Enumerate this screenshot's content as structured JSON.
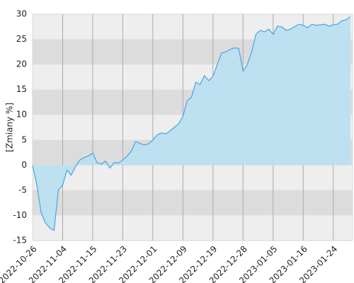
{
  "chart_data": {
    "type": "area",
    "y_label": "[Zmiany %]",
    "categories": [
      "2022-10-26",
      null,
      null,
      null,
      null,
      null,
      null,
      "2022-11-04",
      null,
      null,
      null,
      null,
      null,
      null,
      "2022-11-15",
      null,
      null,
      null,
      null,
      null,
      null,
      "2022-11-23",
      null,
      null,
      null,
      null,
      null,
      null,
      "2022-12-01",
      null,
      null,
      null,
      null,
      null,
      null,
      "2022-12-09",
      null,
      null,
      null,
      null,
      null,
      null,
      "2022-12-19",
      null,
      null,
      null,
      null,
      null,
      null,
      "2022-12-28",
      null,
      null,
      null,
      null,
      null,
      null,
      "2023-01-05",
      null,
      null,
      null,
      null,
      null,
      null,
      "2023-01-16",
      null,
      null,
      null,
      null,
      null,
      null,
      "2023-01-24",
      null,
      null,
      null,
      null
    ],
    "values": [
      0,
      -4,
      -9.5,
      -11.5,
      -12.5,
      -13,
      -5,
      -4,
      -1,
      -2,
      -0.3,
      1,
      1.5,
      1.8,
      2.4,
      0.5,
      0.2,
      0.8,
      -0.6,
      0.5,
      0.4,
      1,
      1.8,
      2.8,
      4.7,
      4.3,
      4,
      4.2,
      5,
      6,
      6.4,
      6.2,
      6.8,
      7.5,
      8.2,
      9.7,
      12.8,
      13.5,
      16.5,
      16,
      17.8,
      16.8,
      17.6,
      20,
      22.3,
      22.5,
      23,
      23.3,
      23.2,
      18.7,
      20,
      22.5,
      26,
      26.8,
      26.5,
      27,
      26,
      27.6,
      27.5,
      26.8,
      27,
      27.5,
      28,
      27.8,
      27.3,
      28,
      27.8,
      27.9,
      28,
      27.6,
      27.9,
      28,
      28.7,
      28.9,
      29.5
    ],
    "color": "#4aa3df",
    "fill": "#b9dff0",
    "ylim": [
      -15,
      30
    ],
    "yticks": [
      -15,
      -10,
      -5,
      0,
      5,
      10,
      15,
      20,
      25,
      30
    ],
    "grid": true
  }
}
